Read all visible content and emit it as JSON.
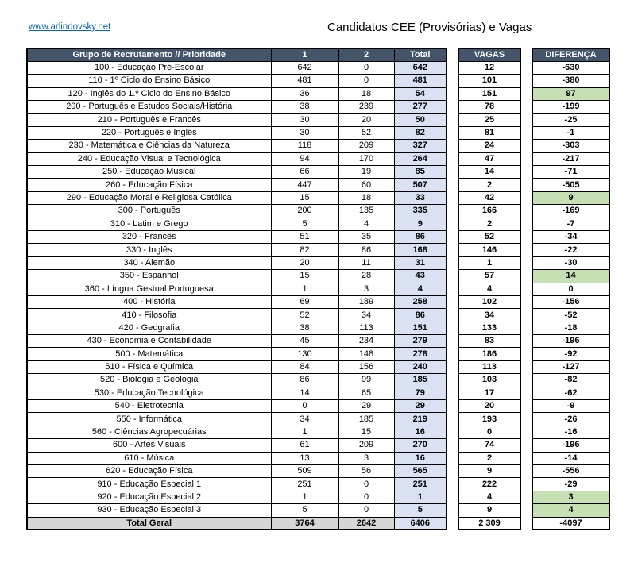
{
  "page": {
    "link": "www.arlindovsky.net",
    "title": "Candidatos CEE (Provisórias) e Vagas"
  },
  "colors": {
    "header_bg": "#44546A",
    "header_text": "#FFFFFF",
    "total_col_bg": "#D9E1F2",
    "positive_bg": "#C6E0B4",
    "total_row_bg": "#D6D6D6",
    "link_color": "#0563C1",
    "border": "#000000"
  },
  "table": {
    "headers": {
      "group": "Grupo de Recrutamento // Prioridade",
      "p1": "1",
      "p2": "2",
      "total": "Total",
      "vagas": "VAGAS",
      "diferenca": "DIFERENÇA"
    },
    "rows": [
      {
        "group": "100 - Educação Pré-Escolar",
        "p1": 642,
        "p2": 0,
        "total": 642,
        "vagas": 12,
        "dif": -630
      },
      {
        "group": "110 - 1º Ciclo do Ensino Básico",
        "p1": 481,
        "p2": 0,
        "total": 481,
        "vagas": 101,
        "dif": -380
      },
      {
        "group": "120 - Inglês do 1.º Ciclo do Ensino Básico",
        "p1": 36,
        "p2": 18,
        "total": 54,
        "vagas": 151,
        "dif": 97
      },
      {
        "group": "200 - Português e Estudos Sociais/História",
        "p1": 38,
        "p2": 239,
        "total": 277,
        "vagas": 78,
        "dif": -199
      },
      {
        "group": "210 - Português e Francês",
        "p1": 30,
        "p2": 20,
        "total": 50,
        "vagas": 25,
        "dif": -25
      },
      {
        "group": "220 - Português e Inglês",
        "p1": 30,
        "p2": 52,
        "total": 82,
        "vagas": 81,
        "dif": -1
      },
      {
        "group": "230 - Matemática e Ciências da Natureza",
        "p1": 118,
        "p2": 209,
        "total": 327,
        "vagas": 24,
        "dif": -303
      },
      {
        "group": "240 - Educação Visual e Tecnológica",
        "p1": 94,
        "p2": 170,
        "total": 264,
        "vagas": 47,
        "dif": -217
      },
      {
        "group": "250 - Educação Musical",
        "p1": 66,
        "p2": 19,
        "total": 85,
        "vagas": 14,
        "dif": -71
      },
      {
        "group": "260 - Educação Física",
        "p1": 447,
        "p2": 60,
        "total": 507,
        "vagas": 2,
        "dif": -505
      },
      {
        "group": "290 - Educação Moral e Religiosa Católica",
        "p1": 15,
        "p2": 18,
        "total": 33,
        "vagas": 42,
        "dif": 9
      },
      {
        "group": "300 - Português",
        "p1": 200,
        "p2": 135,
        "total": 335,
        "vagas": 166,
        "dif": -169
      },
      {
        "group": "310 - Latim e Grego",
        "p1": 5,
        "p2": 4,
        "total": 9,
        "vagas": 2,
        "dif": -7
      },
      {
        "group": "320 - Francês",
        "p1": 51,
        "p2": 35,
        "total": 86,
        "vagas": 52,
        "dif": -34
      },
      {
        "group": "330 - Inglês",
        "p1": 82,
        "p2": 86,
        "total": 168,
        "vagas": 146,
        "dif": -22
      },
      {
        "group": "340 - Alemão",
        "p1": 20,
        "p2": 11,
        "total": 31,
        "vagas": 1,
        "dif": -30
      },
      {
        "group": "350 - Espanhol",
        "p1": 15,
        "p2": 28,
        "total": 43,
        "vagas": 57,
        "dif": 14
      },
      {
        "group": "360 - Língua Gestual Portuguesa",
        "p1": 1,
        "p2": 3,
        "total": 4,
        "vagas": 4,
        "dif": 0
      },
      {
        "group": "400 - História",
        "p1": 69,
        "p2": 189,
        "total": 258,
        "vagas": 102,
        "dif": -156
      },
      {
        "group": "410 - Filosofia",
        "p1": 52,
        "p2": 34,
        "total": 86,
        "vagas": 34,
        "dif": -52
      },
      {
        "group": "420 - Geografia",
        "p1": 38,
        "p2": 113,
        "total": 151,
        "vagas": 133,
        "dif": -18
      },
      {
        "group": "430 - Economia e Contabilidade",
        "p1": 45,
        "p2": 234,
        "total": 279,
        "vagas": 83,
        "dif": -196
      },
      {
        "group": "500 - Matemática",
        "p1": 130,
        "p2": 148,
        "total": 278,
        "vagas": 186,
        "dif": -92
      },
      {
        "group": "510 - Física e Química",
        "p1": 84,
        "p2": 156,
        "total": 240,
        "vagas": 113,
        "dif": -127
      },
      {
        "group": "520 - Biologia e Geologia",
        "p1": 86,
        "p2": 99,
        "total": 185,
        "vagas": 103,
        "dif": -82
      },
      {
        "group": "530 - Educação Tecnológica",
        "p1": 14,
        "p2": 65,
        "total": 79,
        "vagas": 17,
        "dif": -62
      },
      {
        "group": "540 - Eletrotecnia",
        "p1": 0,
        "p2": 29,
        "total": 29,
        "vagas": 20,
        "dif": -9
      },
      {
        "group": "550 - Informática",
        "p1": 34,
        "p2": 185,
        "total": 219,
        "vagas": 193,
        "dif": -26
      },
      {
        "group": "560 - Ciências Agropecuárias",
        "p1": 1,
        "p2": 15,
        "total": 16,
        "vagas": 0,
        "dif": -16
      },
      {
        "group": "600 - Artes Visuais",
        "p1": 61,
        "p2": 209,
        "total": 270,
        "vagas": 74,
        "dif": -196
      },
      {
        "group": "610 - Música",
        "p1": 13,
        "p2": 3,
        "total": 16,
        "vagas": 2,
        "dif": -14
      },
      {
        "group": "620 - Educação Física",
        "p1": 509,
        "p2": 56,
        "total": 565,
        "vagas": 9,
        "dif": -556
      },
      {
        "group": "910 - Educação Especial 1",
        "p1": 251,
        "p2": 0,
        "total": 251,
        "vagas": 222,
        "dif": -29
      },
      {
        "group": "920 - Educação Especial 2",
        "p1": 1,
        "p2": 0,
        "total": 1,
        "vagas": 4,
        "dif": 3
      },
      {
        "group": "930 - Educação Especial 3",
        "p1": 5,
        "p2": 0,
        "total": 5,
        "vagas": 9,
        "dif": 4
      }
    ],
    "total_row": {
      "group": "Total Geral",
      "p1": "3764",
      "p2": "2642",
      "total": "6406",
      "vagas": "2 309",
      "dif": "-4097"
    }
  }
}
